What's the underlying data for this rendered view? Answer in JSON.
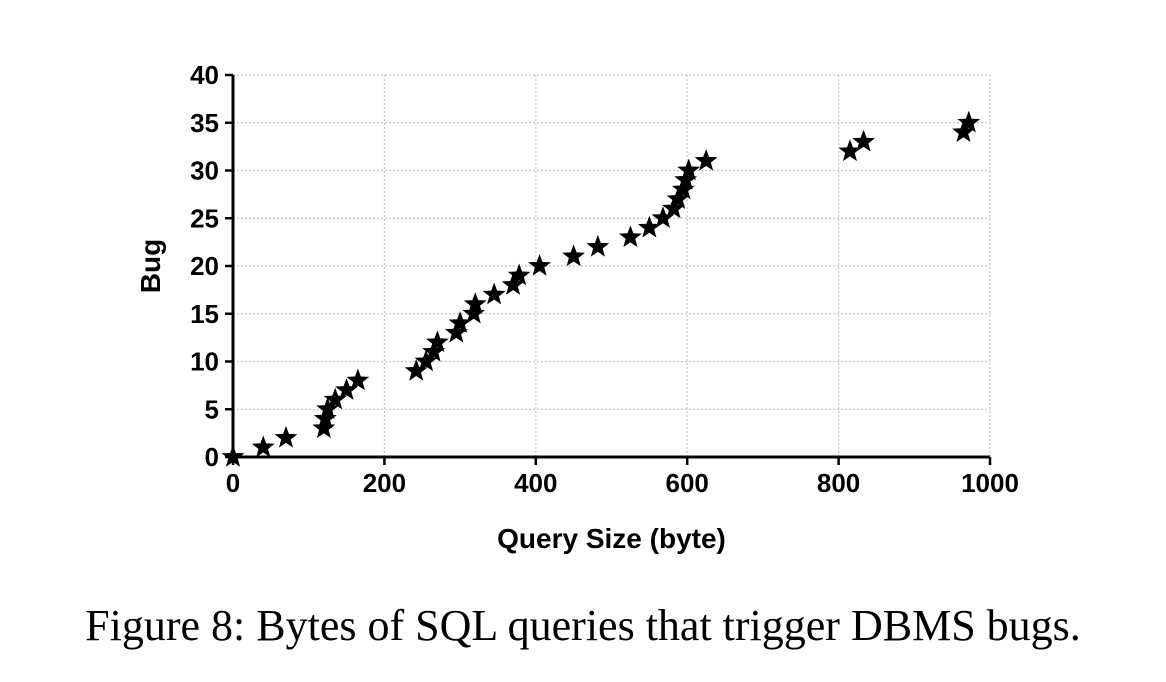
{
  "chart_data": {
    "type": "scatter",
    "marker": "star",
    "color": "#000000",
    "title": "",
    "xlabel": "Query Size (byte)",
    "ylabel": "Bug",
    "xlim": [
      0,
      1000
    ],
    "ylim": [
      0,
      40
    ],
    "xticks": [
      0,
      200,
      400,
      600,
      800,
      1000
    ],
    "yticks": [
      0,
      5,
      10,
      15,
      20,
      25,
      30,
      35,
      40
    ],
    "grid": true,
    "points": [
      {
        "x": 0,
        "y": 0
      },
      {
        "x": 40,
        "y": 1
      },
      {
        "x": 70,
        "y": 2
      },
      {
        "x": 120,
        "y": 3
      },
      {
        "x": 122,
        "y": 4
      },
      {
        "x": 125,
        "y": 5
      },
      {
        "x": 135,
        "y": 6
      },
      {
        "x": 150,
        "y": 7
      },
      {
        "x": 165,
        "y": 8
      },
      {
        "x": 242,
        "y": 9
      },
      {
        "x": 255,
        "y": 10
      },
      {
        "x": 265,
        "y": 11
      },
      {
        "x": 270,
        "y": 12
      },
      {
        "x": 295,
        "y": 13
      },
      {
        "x": 300,
        "y": 14
      },
      {
        "x": 318,
        "y": 15
      },
      {
        "x": 320,
        "y": 16
      },
      {
        "x": 345,
        "y": 17
      },
      {
        "x": 370,
        "y": 18
      },
      {
        "x": 378,
        "y": 19
      },
      {
        "x": 405,
        "y": 20
      },
      {
        "x": 450,
        "y": 21
      },
      {
        "x": 482,
        "y": 22
      },
      {
        "x": 525,
        "y": 23
      },
      {
        "x": 550,
        "y": 24
      },
      {
        "x": 568,
        "y": 25
      },
      {
        "x": 582,
        "y": 26
      },
      {
        "x": 588,
        "y": 27
      },
      {
        "x": 595,
        "y": 28
      },
      {
        "x": 598,
        "y": 29
      },
      {
        "x": 602,
        "y": 30
      },
      {
        "x": 625,
        "y": 31
      },
      {
        "x": 815,
        "y": 32
      },
      {
        "x": 833,
        "y": 33
      },
      {
        "x": 965,
        "y": 34
      },
      {
        "x": 972,
        "y": 35
      }
    ]
  },
  "caption": "Figure 8: Bytes of SQL queries that trigger DBMS bugs."
}
